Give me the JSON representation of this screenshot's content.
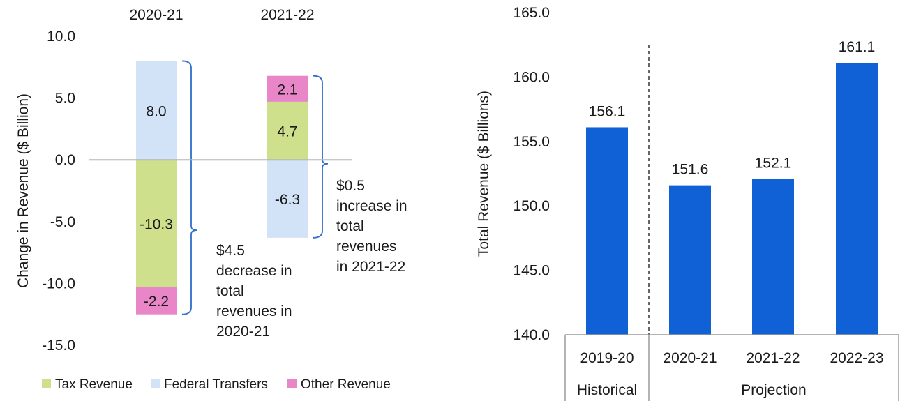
{
  "chart_data": [
    {
      "type": "bar",
      "stacked": true,
      "categories": [
        "2020-21",
        "2021-22"
      ],
      "ylabel": "Change in Revenue ($ Billion)",
      "ylim": [
        -15,
        10
      ],
      "yticks": [
        "10.0",
        "5.0",
        "0.0",
        "-5.0",
        "-10.0",
        "-15.0"
      ],
      "series": [
        {
          "name": "Tax Revenue",
          "color": "#cfe08d",
          "values": [
            -10.3,
            4.7
          ],
          "labels": [
            "-10.3",
            "4.7"
          ]
        },
        {
          "name": "Federal Transfers",
          "color": "#d2e2f7",
          "values": [
            8.0,
            -6.3
          ],
          "labels": [
            "8.0",
            "-6.3"
          ]
        },
        {
          "name": "Other Revenue",
          "color": "#e986c8",
          "values": [
            -2.2,
            2.1
          ],
          "labels": [
            "-2.2",
            "2.1"
          ]
        }
      ],
      "annotations": [
        {
          "category": "2020-21",
          "lines": [
            "$4.5",
            "decrease in",
            "total",
            "revenues in",
            "2020-21"
          ]
        },
        {
          "category": "2021-22",
          "lines": [
            "$0.5",
            "increase in",
            "total",
            "revenues",
            "in 2021-22"
          ]
        }
      ],
      "legend": "bottom"
    },
    {
      "type": "bar",
      "categories": [
        "2019-20",
        "2020-21",
        "2021-22",
        "2022-23"
      ],
      "values": [
        156.1,
        151.6,
        152.1,
        161.1
      ],
      "value_labels": [
        "156.1",
        "151.6",
        "152.1",
        "161.1"
      ],
      "color": "#1060d6",
      "ylabel": "Total Revenue ($ Billions)",
      "ylim": [
        140,
        165
      ],
      "yticks": [
        "165.0",
        "160.0",
        "155.0",
        "150.0",
        "145.0",
        "140.0"
      ],
      "groups": [
        {
          "label": "Historical",
          "categories": [
            "2019-20"
          ]
        },
        {
          "label": "Projection",
          "categories": [
            "2020-21",
            "2021-22",
            "2022-23"
          ]
        }
      ]
    }
  ]
}
